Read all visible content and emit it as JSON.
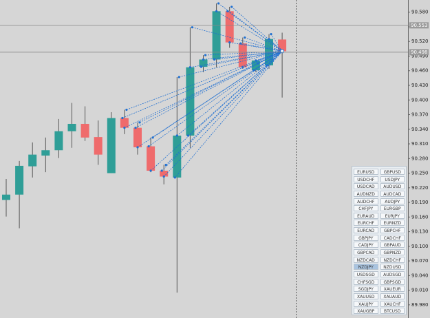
{
  "chart_data": {
    "type": "candlestick",
    "categories": [
      null,
      null,
      null,
      null,
      null,
      null,
      null,
      null,
      null,
      null,
      null,
      null,
      null,
      null,
      null,
      null,
      null,
      null,
      null,
      null,
      null,
      null
    ],
    "open": [
      90.195,
      90.206,
      90.264,
      90.286,
      90.297,
      90.336,
      90.351,
      90.324,
      90.25,
      90.363,
      90.343,
      90.305,
      90.255,
      90.241,
      90.327,
      90.468,
      90.483,
      90.582,
      90.516,
      90.461,
      90.471,
      90.524
    ],
    "high": [
      90.238,
      90.275,
      90.313,
      90.323,
      90.361,
      90.394,
      90.387,
      90.358,
      90.375,
      90.38,
      90.354,
      90.323,
      90.267,
      90.447,
      90.549,
      90.492,
      90.598,
      90.591,
      90.528,
      90.475,
      90.535,
      90.538
    ],
    "low": [
      90.161,
      90.137,
      90.241,
      90.252,
      90.281,
      90.302,
      90.316,
      90.267,
      90.25,
      90.33,
      90.288,
      90.252,
      90.227,
      90.005,
      90.302,
      90.457,
      90.467,
      90.507,
      90.464,
      90.457,
      90.464,
      90.405
    ],
    "close": [
      90.206,
      90.265,
      90.288,
      90.297,
      90.336,
      90.351,
      90.323,
      90.288,
      90.363,
      90.343,
      90.303,
      90.255,
      90.243,
      90.327,
      90.467,
      90.483,
      90.582,
      90.518,
      90.467,
      90.481,
      90.525,
      90.5
    ],
    "up_color": "#2f9e97",
    "down_color": "#ef6b6c",
    "link_color": "#1f6fd1",
    "ylim": [
      89.953,
      90.605
    ],
    "yticks": [
      {
        "value": 89.98,
        "label": "89.980"
      },
      {
        "value": 90.01,
        "label": "90.010"
      },
      {
        "value": 90.04,
        "label": "90.040"
      },
      {
        "value": 90.07,
        "label": "90.070"
      },
      {
        "value": 90.1,
        "label": "90.100"
      },
      {
        "value": 90.13,
        "label": "90.130"
      },
      {
        "value": 90.16,
        "label": "90.160"
      },
      {
        "value": 90.19,
        "label": "90.190"
      },
      {
        "value": 90.22,
        "label": "90.220"
      },
      {
        "value": 90.25,
        "label": "90.250"
      },
      {
        "value": 90.28,
        "label": "90.280"
      },
      {
        "value": 90.31,
        "label": "90.310"
      },
      {
        "value": 90.34,
        "label": "90.340"
      },
      {
        "value": 90.37,
        "label": "90.370"
      },
      {
        "value": 90.4,
        "label": "90.400"
      },
      {
        "value": 90.43,
        "label": "90.430"
      },
      {
        "value": 90.46,
        "label": "90.460"
      },
      {
        "value": 90.49,
        "label": "90.490"
      },
      {
        "value": 90.52,
        "label": "90.520"
      },
      {
        "value": 90.55,
        "label": "90.550"
      },
      {
        "value": 90.58,
        "label": "90.580"
      }
    ],
    "price_lines": [
      {
        "value": 90.553,
        "label": "90.553"
      },
      {
        "value": 90.498,
        "label": "90.498"
      }
    ]
  },
  "symbol_panel": {
    "symbols": [
      "EURUSD",
      "GBPUSD",
      "USDCHF",
      "USDJPY",
      "USDCAD",
      "AUDUSD",
      "AUDNZD",
      "AUDCAD",
      "AUDCHF",
      "AUDJPY",
      "CHFJPY",
      "EURGBP",
      "EURAUD",
      "EURJPY",
      "EURCHF",
      "EURNZD",
      "EURCAD",
      "GBPCHF",
      "GBPJPY",
      "CADCHF",
      "CADJPY",
      "GBPAUD",
      "GBPCAD",
      "GBPNZD",
      "NZDCAD",
      "NZDCHF",
      "NZDJPY",
      "NZDUSD",
      "USDSGD",
      "AUDSGD",
      "CHFSGD",
      "GBPSGD",
      "SGDJPY",
      "XAUEUR",
      "XAUUSD",
      "XAUAUD",
      "XAUJPY",
      "XAUCHF",
      "XAUGBP",
      "BTCUSD"
    ],
    "selected_index": 26
  }
}
